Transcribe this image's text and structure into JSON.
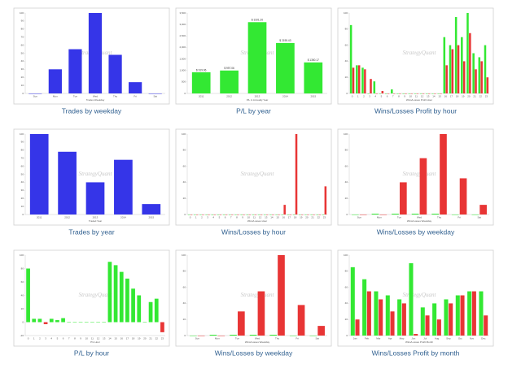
{
  "chart_data": [
    {
      "type": "bar",
      "title": "Trades by weekday",
      "x_label": "Trades Weekday",
      "watermark": "StrategyQuant",
      "categories": [
        "Sun",
        "Mon",
        "Tue",
        "Wed",
        "Thu",
        "Fri",
        "Sat"
      ],
      "values": [
        0,
        30,
        55,
        100,
        48,
        14,
        0
      ],
      "color": "#3535e8",
      "ylim": [
        0,
        100
      ],
      "yticks": [
        0,
        10,
        20,
        30,
        40,
        50,
        60,
        70,
        80,
        90,
        100
      ]
    },
    {
      "type": "bar",
      "title": "P/L by year",
      "x_label": "P/L in Annually Year",
      "watermark": "StrategyQuant",
      "categories": [
        "2011",
        "2012",
        "2013",
        "2014",
        "2015"
      ],
      "values": [
        919.96,
        997.06,
        3101.2,
        2195.43,
        1350.17
      ],
      "value_labels": [
        "$ 919.96",
        "$ 997.06",
        "$ 3101.20",
        "$ 2195.43",
        "$ 1350.17"
      ],
      "color": "#33e833",
      "ylim": [
        0,
        3500
      ],
      "yticks": [
        0,
        500,
        {
          "value": 1000,
          "label": "1,000"
        },
        {
          "value": 1500,
          "label": "1,500"
        },
        {
          "value": 2000,
          "label": "2,000"
        },
        {
          "value": 2500,
          "label": "2,500"
        },
        {
          "value": 3000,
          "label": "3,000"
        },
        {
          "value": 3500,
          "label": "3,500"
        }
      ]
    },
    {
      "type": "bar",
      "title": "Wins/Losses Profit by hour",
      "x_label": "Wins/Losses Profit Hour",
      "watermark": "StrategyQuant",
      "categories": [
        "0",
        "1",
        "2",
        "3",
        "4",
        "5",
        "6",
        "7",
        "8",
        "9",
        "10",
        "11",
        "12",
        "13",
        "14",
        "15",
        "16",
        "17",
        "18",
        "19",
        "20",
        "21",
        "22",
        "23"
      ],
      "series": [
        {
          "color": "#33e833",
          "values": [
            85,
            35,
            32,
            0,
            15,
            0,
            0,
            5,
            0,
            0,
            0,
            0,
            0,
            0,
            0,
            0,
            70,
            60,
            95,
            70,
            100,
            50,
            45,
            60
          ]
        },
        {
          "color": "#e83535",
          "values": [
            32,
            35,
            30,
            18,
            0,
            3,
            0,
            0,
            0,
            0,
            0,
            0,
            0,
            0,
            0,
            0,
            35,
            55,
            60,
            40,
            75,
            30,
            40,
            20
          ]
        }
      ],
      "ylim": [
        0,
        100
      ],
      "yticks": [
        0,
        20,
        40,
        60,
        80,
        100
      ]
    },
    {
      "type": "bar",
      "title": "Trades by year",
      "x_label": "Traded Year",
      "watermark": "StrategyQuant",
      "categories": [
        "2011",
        "2012",
        "2013",
        "2014",
        "2015"
      ],
      "values": [
        100,
        78,
        40,
        68,
        13
      ],
      "color": "#3535e8",
      "ylim": [
        0,
        100
      ],
      "yticks": [
        0,
        10,
        20,
        30,
        40,
        50,
        60,
        70,
        80,
        90,
        100
      ]
    },
    {
      "type": "bar",
      "title": "Wins/Losses by hour",
      "x_label": "Wins/Losses Hour",
      "watermark": "StrategyQuant",
      "categories": [
        "0",
        "1",
        "2",
        "3",
        "4",
        "5",
        "6",
        "7",
        "8",
        "9",
        "10",
        "11",
        "12",
        "13",
        "14",
        "15",
        "16",
        "17",
        "18",
        "19",
        "20",
        "21",
        "22",
        "23"
      ],
      "series": [
        {
          "color": "#33e833",
          "values": [
            0,
            0,
            0,
            0,
            0,
            0,
            0,
            0,
            0,
            0,
            0,
            0,
            0,
            0,
            0,
            0,
            0,
            0,
            0,
            0,
            0,
            0,
            0,
            0
          ]
        },
        {
          "color": "#e83535",
          "values": [
            0,
            0,
            0,
            0,
            0,
            0,
            0,
            0,
            0,
            0,
            0,
            0,
            0,
            0,
            0,
            0,
            12,
            0,
            100,
            0,
            0,
            0,
            0,
            35
          ]
        }
      ],
      "ylim": [
        0,
        100
      ],
      "yticks": [
        0,
        20,
        40,
        60,
        80,
        100
      ]
    },
    {
      "type": "bar",
      "title": "Wins/Losses by weekday",
      "x_label": "Wins/Losses Weekday",
      "watermark": "StrategyQuant",
      "categories": [
        "Sun",
        "Mon",
        "Tue",
        "Wed",
        "Thu",
        "Fri",
        "Sat"
      ],
      "series": [
        {
          "color": "#33e833",
          "values": [
            0,
            1,
            1,
            1,
            1,
            0,
            0
          ]
        },
        {
          "color": "#e83535",
          "values": [
            0,
            0,
            40,
            70,
            100,
            45,
            12
          ]
        }
      ],
      "ylim": [
        0,
        100
      ],
      "yticks": [
        0,
        20,
        40,
        60,
        80,
        100
      ]
    },
    {
      "type": "bar",
      "title": "P/L by hour",
      "x_label": "P/L Hour",
      "watermark": "StrategyQuant",
      "categories": [
        "0",
        "1",
        "2",
        "3",
        "4",
        "5",
        "6",
        "7",
        "8",
        "9",
        "10",
        "11",
        "12",
        "13",
        "14",
        "15",
        "16",
        "17",
        "18",
        "19",
        "20",
        "21",
        "22",
        "23"
      ],
      "values": [
        80,
        5,
        5,
        -3,
        5,
        3,
        6,
        0,
        0,
        0,
        0,
        0,
        0,
        0,
        90,
        85,
        75,
        65,
        50,
        40,
        0,
        30,
        35,
        -15
      ],
      "color": "#33e833",
      "negative_color": "#e83535",
      "ylim": [
        -20,
        100
      ],
      "yticks": [
        -20,
        0,
        20,
        40,
        60,
        80,
        100
      ]
    },
    {
      "type": "bar",
      "title": "Wins/Losses by weekday",
      "x_label": "Wins/Losses Weekday",
      "watermark": "StrategyQuant",
      "categories": [
        "Sun",
        "Mon",
        "Tue",
        "Wed",
        "Thu",
        "Fri",
        "Sat"
      ],
      "series": [
        {
          "color": "#33e833",
          "values": [
            0,
            1,
            1,
            1,
            1,
            0,
            0
          ]
        },
        {
          "color": "#e83535",
          "values": [
            0,
            0,
            30,
            55,
            100,
            38,
            12
          ]
        }
      ],
      "ylim": [
        0,
        100
      ],
      "yticks": [
        0,
        20,
        40,
        60,
        80,
        100
      ]
    },
    {
      "type": "bar",
      "title": "Wins/Losses Profit by month",
      "x_label": "Wins/Losses Profit Month",
      "watermark": "StrategyQuant",
      "categories": [
        "Jan",
        "Feb",
        "Mar",
        "Apr",
        "May",
        "Jun",
        "Jul",
        "Aug",
        "Sep",
        "Oct",
        "Nov",
        "Dec"
      ],
      "series": [
        {
          "color": "#33e833",
          "values": [
            85,
            70,
            55,
            50,
            45,
            90,
            35,
            40,
            45,
            50,
            55,
            55
          ]
        },
        {
          "color": "#e83535",
          "values": [
            20,
            55,
            45,
            30,
            40,
            2,
            25,
            20,
            40,
            50,
            55,
            25
          ]
        }
      ],
      "ylim": [
        0,
        100
      ],
      "yticks": [
        0,
        20,
        40,
        60,
        80,
        100
      ]
    }
  ]
}
